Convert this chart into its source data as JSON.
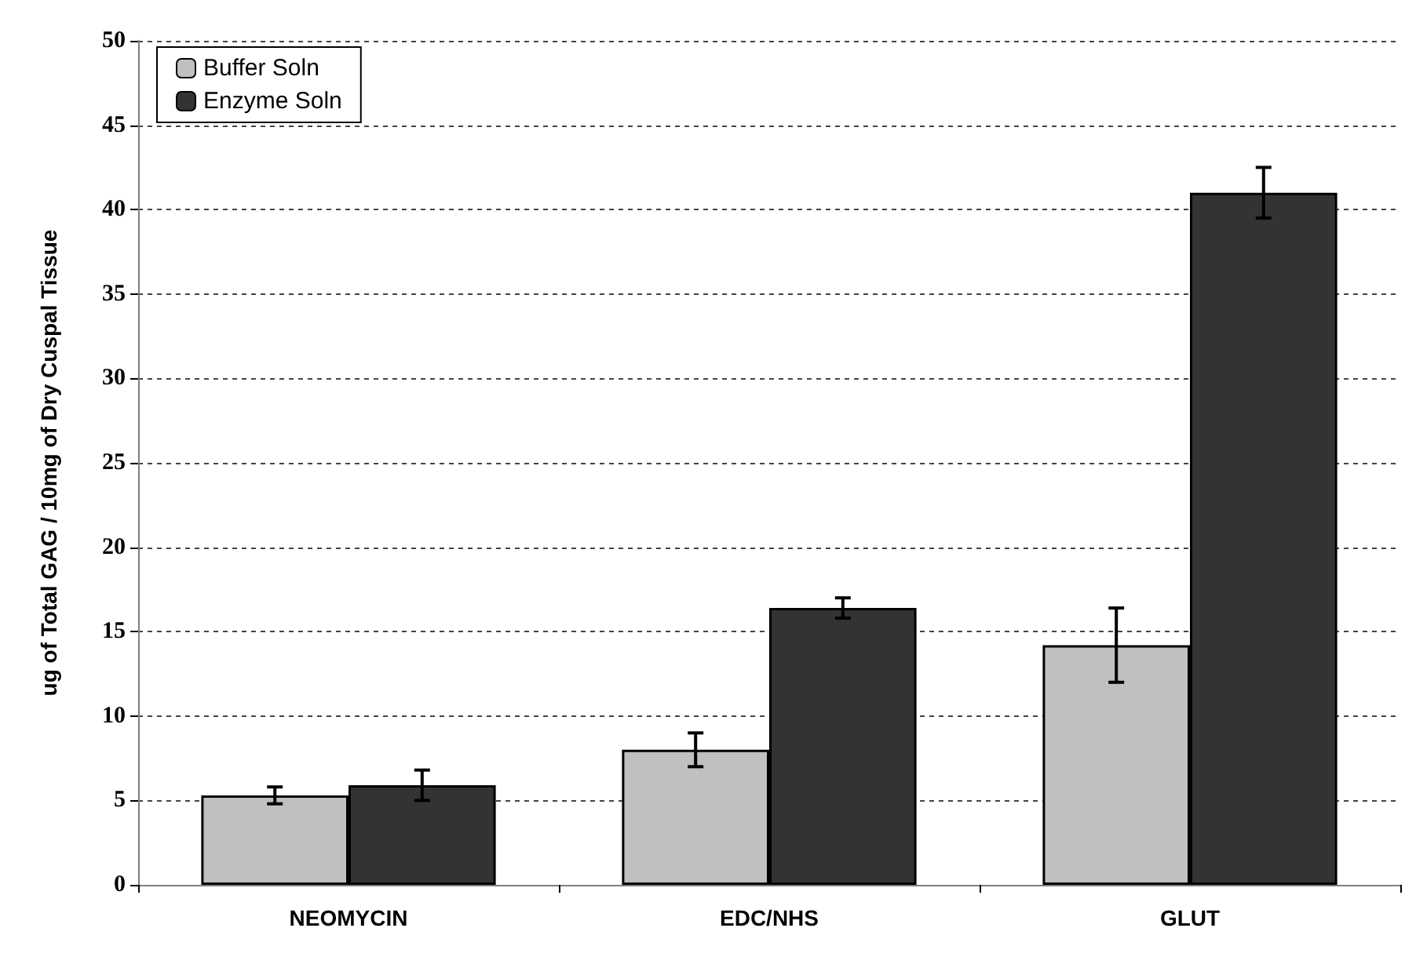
{
  "chart_data": {
    "type": "bar",
    "categories": [
      "NEOMYCIN",
      "EDC/NHS",
      "GLUT"
    ],
    "ylabel": "ug of Total GAG / 10mg of Dry Cuspal Tissue",
    "series": [
      {
        "name": "Buffer Soln",
        "color": "#c0c0c0",
        "values": [
          5.3,
          8.0,
          14.2
        ],
        "errors": [
          0.5,
          1.0,
          2.2
        ]
      },
      {
        "name": "Enzyme Soln",
        "color": "#333333",
        "values": [
          5.9,
          16.4,
          41.0
        ],
        "errors": [
          0.9,
          0.6,
          1.5
        ]
      }
    ],
    "ylim": [
      0,
      50
    ],
    "yticks": [
      0,
      5,
      10,
      15,
      20,
      25,
      30,
      35,
      40,
      45,
      50
    ],
    "grid": "y",
    "legend": "top left"
  }
}
